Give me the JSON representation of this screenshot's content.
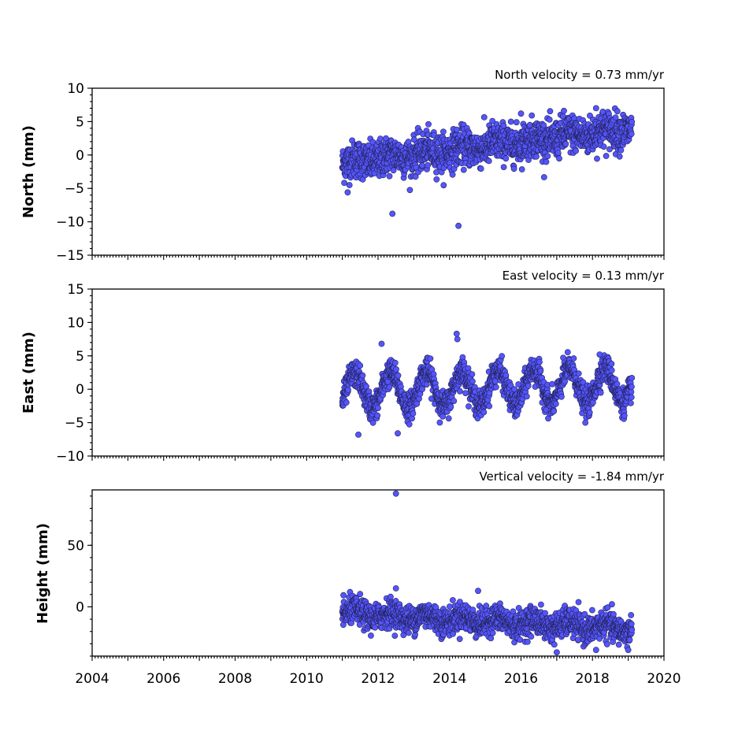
{
  "chart_data": [
    {
      "type": "scatter",
      "panel": "north",
      "ylabel": "North (mm)",
      "annotation": "North velocity = 0.73 mm/yr",
      "velocity_mm_per_yr": 0.73,
      "xlim": [
        2004,
        2020
      ],
      "ylim": [
        -15,
        10
      ],
      "yticks": [
        10,
        5,
        0,
        -5,
        -10,
        -15
      ],
      "yticklabels": [
        "10",
        "5",
        "0",
        "−10",
        "−15"
      ],
      "yticklabels_full": [
        "10",
        "5",
        "0",
        "−5",
        "−10",
        "−15"
      ],
      "grid": false,
      "data_span": [
        2011.0,
        2019.1
      ],
      "series_color": "#5555ff",
      "trend": {
        "start_value": -1.2,
        "end_value": 4.0
      },
      "scatter_sd": 1.4,
      "seasonal_amplitude": 0.4,
      "outliers": [
        {
          "x": 2012.4,
          "y": -8.8
        },
        {
          "x": 2014.25,
          "y": -10.6
        },
        {
          "x": 2016.0,
          "y": 6.2
        },
        {
          "x": 2017.2,
          "y": 6.6
        },
        {
          "x": 2018.1,
          "y": 7.0
        },
        {
          "x": 2011.15,
          "y": -5.6
        },
        {
          "x": 2015.2,
          "y": 5.1
        }
      ]
    },
    {
      "type": "scatter",
      "panel": "east",
      "ylabel": "East (mm)",
      "annotation": "East velocity = 0.13 mm/yr",
      "velocity_mm_per_yr": 0.13,
      "xlim": [
        2004,
        2020
      ],
      "ylim": [
        -10,
        15
      ],
      "yticks": [
        15,
        10,
        5,
        0,
        -5,
        -10
      ],
      "yticklabels_full": [
        "15",
        "10",
        "5",
        "0",
        "−5",
        "−10"
      ],
      "grid": false,
      "data_span": [
        2011.0,
        2019.1
      ],
      "series_color": "#5555ff",
      "trend": {
        "start_value": -0.3,
        "end_value": 0.7
      },
      "scatter_sd": 1.0,
      "seasonal_amplitude": 2.6,
      "outliers": [
        {
          "x": 2012.1,
          "y": 6.8
        },
        {
          "x": 2014.2,
          "y": 8.3
        },
        {
          "x": 2014.22,
          "y": 7.5
        },
        {
          "x": 2018.2,
          "y": 5.2
        },
        {
          "x": 2017.8,
          "y": -5.0
        },
        {
          "x": 2011.45,
          "y": -6.8
        },
        {
          "x": 2012.55,
          "y": -6.6
        }
      ]
    },
    {
      "type": "scatter",
      "panel": "height",
      "ylabel": "Height (mm)",
      "annotation": "Vertical velocity = -1.84 mm/yr",
      "velocity_mm_per_yr": -1.84,
      "xlim": [
        2004,
        2020
      ],
      "ylim": [
        -40,
        95
      ],
      "yticks": [
        50,
        0
      ],
      "yticklabels_full": [
        "50",
        "0"
      ],
      "xticks": [
        2004,
        2006,
        2008,
        2010,
        2012,
        2014,
        2016,
        2018,
        2020
      ],
      "xticklabels": [
        "2004",
        "2006",
        "2008",
        "2010",
        "2012",
        "2014",
        "2016",
        "2018",
        "2020"
      ],
      "grid": false,
      "data_span": [
        2011.0,
        2019.1
      ],
      "series_color": "#5555ff",
      "trend": {
        "start_value": -5.0,
        "end_value": -18.0
      },
      "scatter_sd": 5.5,
      "seasonal_amplitude": 3.0,
      "outliers": [
        {
          "x": 2012.5,
          "y": 92.0
        },
        {
          "x": 2017.0,
          "y": -37.0
        },
        {
          "x": 2019.0,
          "y": -35.0
        },
        {
          "x": 2018.1,
          "y": -35.0
        },
        {
          "x": 2012.5,
          "y": 15.0
        },
        {
          "x": 2014.8,
          "y": 13.0
        }
      ]
    }
  ]
}
